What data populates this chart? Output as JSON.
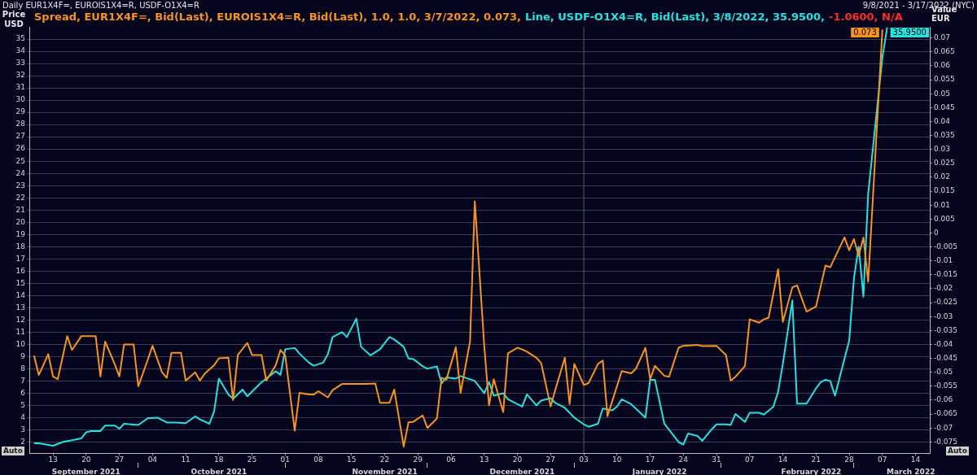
{
  "chart_data": {
    "type": "line",
    "title": "Daily EUR1X4F=, EUROIS1X4=R, USDF-O1X4=R",
    "subtitle": "9/8/2021 - 3/17/2022 (NYC)",
    "ylabel": "Price USD",
    "y2label": "Value EUR",
    "annotations": [
      "-1.0600, N/A",
      "Auto",
      "Auto"
    ],
    "legend": "top left",
    "grid": "y",
    "xlim": [
      "2021-09-08",
      "2022-03-17"
    ],
    "xticks": [
      {
        "value": "2021-09-13",
        "label": "13"
      },
      {
        "value": "2021-09-20",
        "label": "20"
      },
      {
        "value": "2021-09-27",
        "label": "27"
      },
      {
        "value": "2021-10-04",
        "label": "04"
      },
      {
        "value": "2021-10-11",
        "label": "11"
      },
      {
        "value": "2021-10-18",
        "label": "18"
      },
      {
        "value": "2021-10-25",
        "label": "25"
      },
      {
        "value": "2021-11-01",
        "label": "01"
      },
      {
        "value": "2021-11-08",
        "label": "08"
      },
      {
        "value": "2021-11-15",
        "label": "15"
      },
      {
        "value": "2021-11-22",
        "label": "22"
      },
      {
        "value": "2021-11-29",
        "label": "29"
      },
      {
        "value": "2021-12-06",
        "label": "06"
      },
      {
        "value": "2021-12-13",
        "label": "13"
      },
      {
        "value": "2021-12-20",
        "label": "20"
      },
      {
        "value": "2021-12-27",
        "label": "27"
      },
      {
        "value": "2022-01-03",
        "label": "03"
      },
      {
        "value": "2022-01-10",
        "label": "10"
      },
      {
        "value": "2022-01-17",
        "label": "17"
      },
      {
        "value": "2022-01-24",
        "label": "24"
      },
      {
        "value": "2022-01-31",
        "label": "31"
      },
      {
        "value": "2022-02-07",
        "label": "07"
      },
      {
        "value": "2022-02-14",
        "label": "14"
      },
      {
        "value": "2022-02-21",
        "label": "21"
      },
      {
        "value": "2022-02-28",
        "label": "28"
      },
      {
        "value": "2022-03-07",
        "label": "07"
      },
      {
        "value": "2022-03-14",
        "label": "14"
      }
    ],
    "x2lim": [
      "2021-09-08",
      "2022-03-17"
    ],
    "x2ticks": [
      {
        "value": "2021-09-20",
        "label": "September 2021"
      },
      {
        "value": "2021-10-01",
        "label": null
      },
      {
        "value": "2021-10-18",
        "label": "October 2021"
      },
      {
        "value": "2021-11-01",
        "label": null
      },
      {
        "value": "2021-11-22",
        "label": "November 2021"
      },
      {
        "value": "2021-12-01",
        "label": null
      },
      {
        "value": "2021-12-21",
        "label": "December 2021"
      },
      {
        "value": "2022-01-01",
        "label": null
      },
      {
        "value": "2022-01-19",
        "label": "January 2022"
      },
      {
        "value": "2022-02-01",
        "label": null
      },
      {
        "value": "2022-02-20",
        "label": "February 2022"
      },
      {
        "value": "2022-03-01",
        "label": null
      },
      {
        "value": "2022-03-13",
        "label": "March 2022"
      }
    ],
    "ylim": [
      1.1,
      36
    ],
    "yticks": [
      2,
      3,
      4,
      5,
      6,
      7,
      8,
      9,
      10,
      11,
      12,
      13,
      14,
      15,
      16,
      17,
      18,
      19,
      20,
      21,
      22,
      23,
      24,
      25,
      26,
      27,
      28,
      29,
      30,
      31,
      32,
      33,
      34,
      35
    ],
    "y2lim": [
      -0.079,
      0.074
    ],
    "y2ticks": [
      -0.075,
      -0.07,
      -0.065,
      -0.06,
      -0.055,
      -0.05,
      -0.045,
      -0.04,
      -0.035,
      -0.03,
      -0.025,
      -0.02,
      -0.015,
      -0.01,
      -0.005,
      0,
      0.005,
      0.01,
      0.015,
      0.02,
      0.025,
      0.03,
      0.035,
      0.04,
      0.045,
      0.05,
      0.055,
      0.06,
      0.065,
      0.07
    ],
    "ref_lines": [
      {
        "axis": "x",
        "value": "2022-01-03",
        "color": "#5a5a5a"
      }
    ],
    "series": [
      {
        "name": "Spread, EUR1X4F=, Bid(Last), EUROIS1X4=R, Bid(Last),  1.0, 1.0, 3/7/2022, 0.073,",
        "color": "#f7941d",
        "axis": "y2",
        "x": [
          "2021-09-09",
          "2021-09-10",
          "2021-09-12",
          "2021-09-13",
          "2021-09-14",
          "2021-09-16",
          "2021-09-17",
          "2021-09-19",
          "2021-09-22",
          "2021-09-23",
          "2021-09-24",
          "2021-09-26",
          "2021-09-27",
          "2021-09-28",
          "2021-09-30",
          "2021-10-01",
          "2021-10-03",
          "2021-10-04",
          "2021-10-06",
          "2021-10-07",
          "2021-10-08",
          "2021-10-10",
          "2021-10-11",
          "2021-10-13",
          "2021-10-14",
          "2021-10-15",
          "2021-10-17",
          "2021-10-18",
          "2021-10-20",
          "2021-10-21",
          "2021-10-22",
          "2021-10-24",
          "2021-10-25",
          "2021-10-27",
          "2021-10-28",
          "2021-10-30",
          "2021-10-31",
          "2021-11-01",
          "2021-11-03",
          "2021-11-04",
          "2021-11-06",
          "2021-11-07",
          "2021-11-08",
          "2021-11-10",
          "2021-11-11",
          "2021-11-13",
          "2021-11-18",
          "2021-11-20",
          "2021-11-21",
          "2021-11-23",
          "2021-11-24",
          "2021-11-26",
          "2021-11-27",
          "2021-11-28",
          "2021-11-30",
          "2021-12-01",
          "2021-12-03",
          "2021-12-04",
          "2021-12-05",
          "2021-12-07",
          "2021-12-08",
          "2021-12-10",
          "2021-12-11",
          "2021-12-13",
          "2021-12-14",
          "2021-12-15",
          "2021-12-17",
          "2021-12-18",
          "2021-12-20",
          "2021-12-21",
          "2021-12-22",
          "2021-12-24",
          "2021-12-25",
          "2021-12-27",
          "2021-12-28",
          "2021-12-30",
          "2021-12-31",
          "2022-01-01",
          "2022-01-03",
          "2022-01-04",
          "2022-01-06",
          "2022-01-07",
          "2022-01-08",
          "2022-01-11",
          "2022-01-13",
          "2022-01-14",
          "2022-01-16",
          "2022-01-17",
          "2022-01-18",
          "2022-01-20",
          "2022-01-21",
          "2022-01-23",
          "2022-01-24",
          "2022-01-27",
          "2022-01-28",
          "2022-01-31",
          "2022-02-02",
          "2022-02-03",
          "2022-02-04",
          "2022-02-06",
          "2022-02-07",
          "2022-02-09",
          "2022-02-10",
          "2022-02-11",
          "2022-02-13",
          "2022-02-14",
          "2022-02-16",
          "2022-02-17",
          "2022-02-19",
          "2022-02-21",
          "2022-02-23",
          "2022-02-24",
          "2022-02-27",
          "2022-02-28",
          "2022-03-01",
          "2022-03-02",
          "2022-03-03",
          "2022-03-04",
          "2022-03-07"
        ],
        "values": [
          -0.044,
          -0.051,
          -0.0435,
          -0.0515,
          -0.0525,
          -0.037,
          -0.042,
          -0.037,
          -0.037,
          -0.0515,
          -0.039,
          -0.047,
          -0.0515,
          -0.04,
          -0.04,
          -0.055,
          -0.0455,
          -0.0405,
          -0.05,
          -0.052,
          -0.043,
          -0.043,
          -0.053,
          -0.05,
          -0.053,
          -0.0505,
          -0.0475,
          -0.045,
          -0.0448,
          -0.06,
          -0.0438,
          -0.0395,
          -0.0438,
          -0.0438,
          -0.053,
          -0.0475,
          -0.042,
          -0.044,
          -0.071,
          -0.0574,
          -0.058,
          -0.058,
          -0.0568,
          -0.059,
          -0.0564,
          -0.0542,
          -0.0542,
          -0.054,
          -0.061,
          -0.061,
          -0.0562,
          -0.0767,
          -0.068,
          -0.0678,
          -0.0655,
          -0.07,
          -0.0666,
          -0.052,
          -0.0527,
          -0.041,
          -0.0574,
          -0.0389,
          0.0114,
          -0.0406,
          -0.0619,
          -0.0525,
          -0.0643,
          -0.0432,
          -0.0412,
          -0.0418,
          -0.0426,
          -0.0448,
          -0.0467,
          -0.0623,
          -0.0562,
          -0.0448,
          -0.0614,
          -0.047,
          -0.0546,
          -0.0539,
          -0.047,
          -0.0458,
          -0.0658,
          -0.0496,
          -0.0504,
          -0.0487,
          -0.0412,
          -0.0525,
          -0.0477,
          -0.0513,
          -0.0516,
          -0.0412,
          -0.0405,
          -0.0402,
          -0.0406,
          -0.0405,
          -0.0438,
          -0.053,
          -0.0516,
          -0.0478,
          -0.031,
          -0.0322,
          -0.031,
          -0.0304,
          -0.013,
          -0.0319,
          -0.0195,
          -0.0188,
          -0.0282,
          -0.0264,
          -0.0117,
          -0.0123,
          -0.0016,
          -0.0062,
          -0.0022,
          -0.0082,
          -0.0016,
          -0.0175,
          0.073
        ],
        "value_labels": [
          null,
          null,
          null,
          null,
          null,
          null,
          null,
          null,
          null,
          null,
          null,
          null,
          null,
          null,
          null,
          null,
          null,
          null,
          null,
          null,
          null,
          null,
          null,
          null,
          null,
          null,
          null,
          null,
          null,
          null,
          null,
          null,
          null,
          null,
          null,
          null,
          null,
          null,
          null,
          null,
          null,
          null,
          null,
          null,
          null,
          null,
          null,
          null,
          null,
          null,
          null,
          null,
          null,
          null,
          null,
          null,
          null,
          null,
          null,
          null,
          null,
          null,
          null,
          null,
          null,
          null,
          null,
          null,
          null,
          null,
          null,
          null,
          null,
          null,
          null,
          null,
          null,
          null,
          null,
          null,
          null,
          null,
          null,
          null,
          null,
          null,
          null,
          null,
          null,
          null,
          null,
          null,
          null,
          null,
          null,
          null,
          null,
          null,
          null,
          null,
          null,
          null,
          null,
          null,
          null,
          null,
          null,
          null,
          null,
          null,
          null,
          null,
          null,
          null,
          null,
          null,
          null,
          null,
          "0.073"
        ]
      },
      {
        "name": "Line, USDF-O1X4=R, Bid(Last), 3/8/2022, 35.9500,",
        "color": "#22e3e0",
        "axis": "y",
        "x": [
          "2021-09-09",
          "2021-09-10",
          "2021-09-13",
          "2021-09-15",
          "2021-09-19",
          "2021-09-20",
          "2021-09-21",
          "2021-09-23",
          "2021-09-24",
          "2021-09-26",
          "2021-09-27",
          "2021-09-28",
          "2021-10-01",
          "2021-10-03",
          "2021-10-05",
          "2021-10-07",
          "2021-10-09",
          "2021-10-11",
          "2021-10-13",
          "2021-10-14",
          "2021-10-16",
          "2021-10-17",
          "2021-10-18",
          "2021-10-20",
          "2021-10-21",
          "2021-10-23",
          "2021-10-24",
          "2021-10-27",
          "2021-10-30",
          "2021-10-31",
          "2021-11-01",
          "2021-11-03",
          "2021-11-04",
          "2021-11-06",
          "2021-11-07",
          "2021-11-09",
          "2021-11-10",
          "2021-11-11",
          "2021-11-13",
          "2021-11-14",
          "2021-11-16",
          "2021-11-17",
          "2021-11-19",
          "2021-11-21",
          "2021-11-23",
          "2021-11-24",
          "2021-11-26",
          "2021-11-27",
          "2021-11-28",
          "2021-11-30",
          "2021-12-01",
          "2021-12-03",
          "2021-12-04",
          "2021-12-05",
          "2021-12-07",
          "2021-12-08",
          "2021-12-11",
          "2021-12-13",
          "2021-12-14",
          "2021-12-15",
          "2021-12-17",
          "2021-12-18",
          "2021-12-20",
          "2021-12-21",
          "2021-12-22",
          "2021-12-24",
          "2021-12-25",
          "2021-12-27",
          "2021-12-28",
          "2021-12-30",
          "2022-01-01",
          "2022-01-03",
          "2022-01-04",
          "2022-01-06",
          "2022-01-07",
          "2022-01-09",
          "2022-01-10",
          "2022-01-11",
          "2022-01-13",
          "2022-01-16",
          "2022-01-17",
          "2022-01-18",
          "2022-01-20",
          "2022-01-23",
          "2022-01-24",
          "2022-01-25",
          "2022-01-27",
          "2022-01-28",
          "2022-01-30",
          "2022-01-31",
          "2022-02-02",
          "2022-02-03",
          "2022-02-04",
          "2022-02-06",
          "2022-02-07",
          "2022-02-09",
          "2022-02-10",
          "2022-02-12",
          "2022-02-13",
          "2022-02-14",
          "2022-02-16",
          "2022-02-17",
          "2022-02-19",
          "2022-02-21",
          "2022-02-22",
          "2022-02-23",
          "2022-02-24",
          "2022-02-25",
          "2022-02-28",
          "2022-03-01",
          "2022-03-02",
          "2022-03-03",
          "2022-03-04",
          "2022-03-07",
          "2022-03-08"
        ],
        "values": [
          1.9,
          1.9,
          1.7,
          2.0,
          2.3,
          2.8,
          2.9,
          2.9,
          3.35,
          3.35,
          3.1,
          3.5,
          3.4,
          3.95,
          4.0,
          3.6,
          3.6,
          3.55,
          4.1,
          3.85,
          3.5,
          4.5,
          7.2,
          5.9,
          5.55,
          6.3,
          5.75,
          6.9,
          7.8,
          7.5,
          9.6,
          9.7,
          9.25,
          8.5,
          8.25,
          8.5,
          9.2,
          10.6,
          11.0,
          10.6,
          12.1,
          9.8,
          9.1,
          9.6,
          10.6,
          10.4,
          9.8,
          8.85,
          8.8,
          8.2,
          8.0,
          8.2,
          6.8,
          7.3,
          7.2,
          7.4,
          7.0,
          6.0,
          6.9,
          5.8,
          6.0,
          5.5,
          5.1,
          4.9,
          5.9,
          5.0,
          5.4,
          5.6,
          5.2,
          4.8,
          4.0,
          3.45,
          3.25,
          3.5,
          4.75,
          4.6,
          4.9,
          5.5,
          5.1,
          4.0,
          7.1,
          7.1,
          3.5,
          2.0,
          1.8,
          2.7,
          2.5,
          2.1,
          3.05,
          3.45,
          3.45,
          3.4,
          4.3,
          3.65,
          4.4,
          4.4,
          4.25,
          4.9,
          6.1,
          8.4,
          13.6,
          5.15,
          5.15,
          6.4,
          6.9,
          7.1,
          7.0,
          5.8,
          10.3,
          15.4,
          18.0,
          13.9,
          22.3,
          33.5,
          35.95
        ],
        "value_labels": [
          null,
          null,
          null,
          null,
          null,
          null,
          null,
          null,
          null,
          null,
          null,
          null,
          null,
          null,
          null,
          null,
          null,
          null,
          null,
          null,
          null,
          null,
          null,
          null,
          null,
          null,
          null,
          null,
          null,
          null,
          null,
          null,
          null,
          null,
          null,
          null,
          null,
          null,
          null,
          null,
          null,
          null,
          null,
          null,
          null,
          null,
          null,
          null,
          null,
          null,
          null,
          null,
          null,
          null,
          null,
          null,
          null,
          null,
          null,
          null,
          null,
          null,
          null,
          null,
          null,
          null,
          null,
          null,
          null,
          null,
          null,
          null,
          null,
          null,
          null,
          null,
          null,
          null,
          null,
          null,
          null,
          null,
          null,
          null,
          null,
          null,
          null,
          null,
          null,
          null,
          null,
          null,
          null,
          null,
          null,
          null,
          null,
          null,
          null,
          null,
          null,
          null,
          null,
          null,
          null,
          null,
          null,
          null,
          null,
          null,
          null,
          null,
          null,
          null,
          "35.9500"
        ]
      }
    ]
  }
}
